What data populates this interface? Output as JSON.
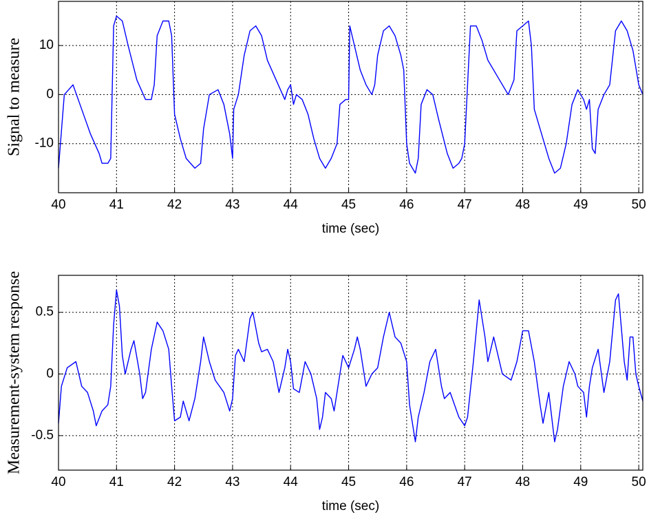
{
  "chart_data": [
    {
      "type": "line",
      "ylabel": "Signal to measure",
      "xlabel": "time (sec)",
      "color": "#0000ff",
      "grid": true,
      "xlim": [
        40,
        50.07
      ],
      "ylim": [
        -20,
        19
      ],
      "xticks": [
        40,
        41,
        42,
        43,
        44,
        45,
        46,
        47,
        48,
        49,
        50
      ],
      "yticks": [
        -10,
        0,
        10
      ],
      "x": [
        40,
        40.1,
        40.25,
        40.4,
        40.55,
        40.7,
        40.75,
        40.85,
        40.9,
        40.95,
        41,
        41.1,
        41.2,
        41.35,
        41.5,
        41.6,
        41.65,
        41.7,
        41.8,
        41.9,
        41.95,
        42,
        42.1,
        42.2,
        42.35,
        42.45,
        42.5,
        42.6,
        42.75,
        42.85,
        42.95,
        43,
        43.02,
        43.1,
        43.2,
        43.3,
        43.4,
        43.5,
        43.6,
        43.75,
        43.9,
        43.95,
        44,
        44.05,
        44.1,
        44.2,
        44.3,
        44.4,
        44.5,
        44.6,
        44.7,
        44.8,
        44.85,
        44.95,
        45,
        45.02,
        45.1,
        45.2,
        45.3,
        45.4,
        45.45,
        45.5,
        45.6,
        45.7,
        45.8,
        45.9,
        45.95,
        46,
        46.05,
        46.15,
        46.2,
        46.25,
        46.35,
        46.45,
        46.55,
        46.7,
        46.8,
        46.9,
        46.95,
        47,
        47.1,
        47.2,
        47.3,
        47.4,
        47.6,
        47.75,
        47.85,
        47.9,
        48,
        48.1,
        48.15,
        48.2,
        48.3,
        48.45,
        48.55,
        48.65,
        48.75,
        48.85,
        48.95,
        49.05,
        49.1,
        49.15,
        49.2,
        49.25,
        49.3,
        49.4,
        49.5,
        49.6,
        49.7,
        49.8,
        49.9,
        50,
        50.07
      ],
      "values": [
        -15,
        0,
        2,
        -3,
        -8,
        -12,
        -14,
        -14,
        -13,
        14,
        16,
        15,
        10,
        3,
        -1,
        -1,
        2,
        12,
        15,
        15,
        12,
        -4,
        -9,
        -13,
        -15,
        -14,
        -7,
        0,
        1,
        -2,
        -8,
        -13,
        -3,
        0,
        8,
        13,
        14,
        12,
        7,
        3,
        -1,
        1,
        2,
        -2,
        0,
        -1,
        -4,
        -9,
        -13,
        -15,
        -13,
        -10,
        -2,
        -1,
        -1,
        14,
        10,
        5,
        2,
        0,
        2,
        8,
        13,
        14,
        12,
        8,
        5,
        -10,
        -14,
        -16,
        -13,
        -2,
        1,
        0,
        -5,
        -12,
        -15,
        -14,
        -13,
        -10,
        14,
        14,
        11,
        7,
        3,
        0,
        3,
        13,
        14,
        15,
        10,
        -3,
        -7,
        -13,
        -16,
        -15,
        -10,
        -2,
        1,
        -1,
        -3,
        -1,
        -11,
        -12,
        -3,
        0,
        2,
        13,
        15,
        13,
        9,
        2,
        0
      ]
    },
    {
      "type": "line",
      "ylabel": "Measurement-system response",
      "xlabel": "time (sec)",
      "color": "#0000ff",
      "grid": true,
      "xlim": [
        40,
        50.07
      ],
      "ylim": [
        -0.78,
        0.8
      ],
      "xticks": [
        40,
        41,
        42,
        43,
        44,
        45,
        46,
        47,
        48,
        49,
        50
      ],
      "yticks": [
        -0.5,
        0,
        0.5
      ],
      "x": [
        40,
        40.05,
        40.15,
        40.3,
        40.4,
        40.5,
        40.6,
        40.65,
        40.75,
        40.85,
        40.9,
        40.95,
        41,
        41.05,
        41.1,
        41.15,
        41.25,
        41.3,
        41.4,
        41.45,
        41.5,
        41.6,
        41.7,
        41.8,
        41.9,
        41.95,
        42,
        42.1,
        42.15,
        42.25,
        42.35,
        42.45,
        42.5,
        42.6,
        42.7,
        42.85,
        42.95,
        43,
        43.05,
        43.1,
        43.2,
        43.3,
        43.35,
        43.45,
        43.5,
        43.6,
        43.7,
        43.8,
        43.9,
        43.95,
        44,
        44.05,
        44.15,
        44.25,
        44.35,
        44.45,
        44.5,
        44.55,
        44.6,
        44.7,
        44.75,
        44.85,
        44.9,
        45,
        45.1,
        45.15,
        45.2,
        45.3,
        45.4,
        45.5,
        45.6,
        45.7,
        45.8,
        45.9,
        46,
        46.05,
        46.15,
        46.2,
        46.3,
        46.4,
        46.5,
        46.6,
        46.65,
        46.75,
        46.9,
        47,
        47.05,
        47.15,
        47.25,
        47.35,
        47.4,
        47.5,
        47.55,
        47.65,
        47.8,
        47.9,
        48,
        48.1,
        48.2,
        48.3,
        48.35,
        48.45,
        48.55,
        48.6,
        48.7,
        48.8,
        48.9,
        48.95,
        49.05,
        49.1,
        49.15,
        49.2,
        49.3,
        49.4,
        49.5,
        49.6,
        49.65,
        49.75,
        49.8,
        49.85,
        49.9,
        49.95,
        50,
        50.07
      ],
      "values": [
        -0.4,
        -0.1,
        0.05,
        0.1,
        -0.1,
        -0.15,
        -0.3,
        -0.42,
        -0.3,
        -0.25,
        -0.1,
        0.4,
        0.68,
        0.55,
        0.15,
        0,
        0.2,
        0.27,
        0,
        -0.2,
        -0.15,
        0.2,
        0.42,
        0.35,
        0.2,
        -0.1,
        -0.38,
        -0.35,
        -0.22,
        -0.38,
        -0.2,
        0.1,
        0.3,
        0.1,
        -0.05,
        -0.15,
        -0.3,
        -0.2,
        0.15,
        0.2,
        0.1,
        0.45,
        0.5,
        0.25,
        0.18,
        0.2,
        0.1,
        -0.15,
        0.05,
        0.2,
        0.1,
        -0.12,
        -0.15,
        0.1,
        0,
        -0.2,
        -0.45,
        -0.35,
        -0.15,
        -0.2,
        -0.3,
        0,
        0.15,
        0.05,
        0.2,
        0.3,
        0.2,
        -0.1,
        0,
        0.05,
        0.3,
        0.5,
        0.3,
        0.25,
        0.1,
        -0.25,
        -0.55,
        -0.35,
        -0.15,
        0.1,
        0.2,
        -0.1,
        -0.2,
        -0.15,
        -0.35,
        -0.42,
        -0.35,
        0.1,
        0.6,
        0.3,
        0.1,
        0.3,
        0.2,
        0,
        -0.05,
        0.1,
        0.35,
        0.35,
        0.1,
        -0.25,
        -0.4,
        -0.15,
        -0.55,
        -0.45,
        -0.1,
        0.1,
        0,
        -0.1,
        -0.15,
        -0.35,
        -0.1,
        0.05,
        0.2,
        -0.15,
        0.1,
        0.6,
        0.65,
        0.1,
        -0.05,
        0.3,
        0.3,
        0,
        -0.1,
        -0.22
      ]
    }
  ]
}
